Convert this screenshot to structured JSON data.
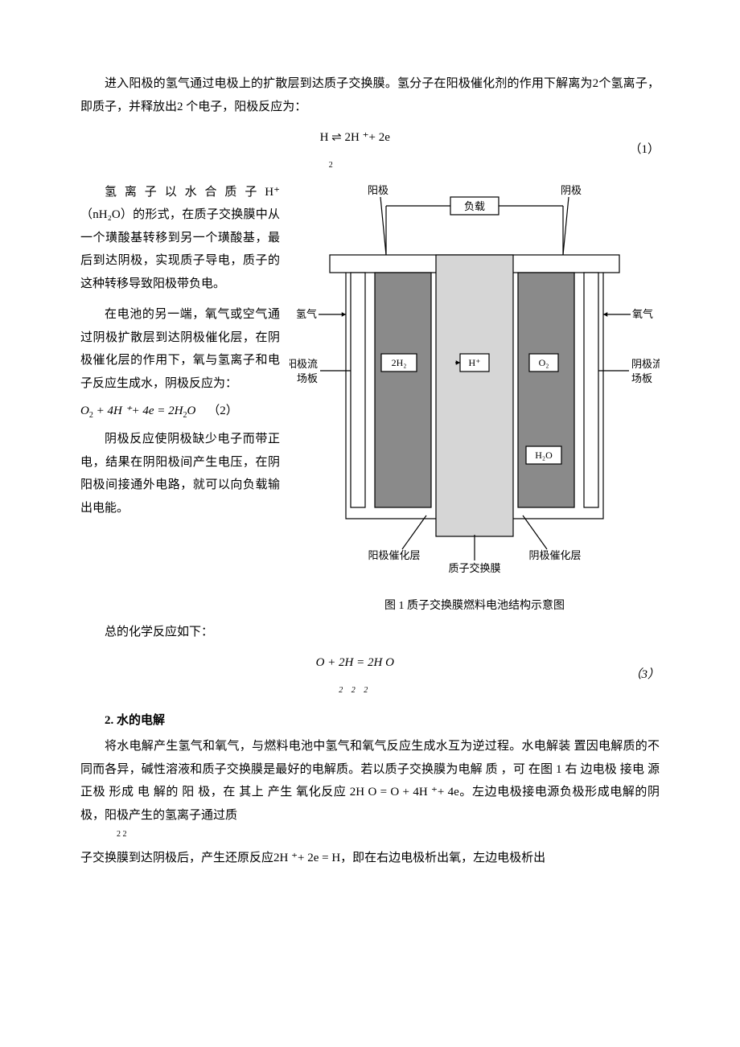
{
  "p1": "进入阳极的氢气通过电极上的扩散层到达质子交换膜。氢分子在阳极催化剂的作用下解离为2个氢离子，即质子，并释放出2 个电子，阳极反应为：",
  "eq1": {
    "body": "H ⇌ 2H ⁺+ 2e",
    "sub": "2",
    "num": "（1）"
  },
  "p2a": "氢 离 子 以 水 合 质 子  H⁺（nH₂O）的形式，在质子交换膜中从一个璜酸基转移到另一个璜酸基，最后到达阴极，实现质子导电，质子的这种转移导致阳极带负电。",
  "p2b": "在电池的另一端，氧气或空气通过阴极扩散层到达阴极催化层，在阴极催化层的作用下，氧与氢离子和电子反应生成水，阴极反应为：",
  "eq2": {
    "lhs": "O",
    "sub1": "2",
    "mid": " + 4H ⁺+ 4e = 2H",
    "sub2": "2",
    "rhs": "O",
    "num": "（2）"
  },
  "p2c": "阴极反应使阴极缺少电子而带正电，结果在阴阳极间产生电压，在阴阳极间接通外电路，就可以向负载输出电能。",
  "p3": "总的化学反应如下：",
  "eq3": {
    "body": "O +  2H  = 2H O",
    "sub": "2 2  2",
    "num": "（3）"
  },
  "heading2": "2. 水的电解",
  "p4": "将水电解产生氢气和氧气，与燃料电池中氢气和氧气反应生成水互为逆过程。水电解装 置因电解质的不同而各异，碱性溶液和质子交换膜是最好的电解质。若以质子交换膜为电解 质 ，可 在图 1 右  边电极 接电 源正极 形成 电 解的 阳 极，在 其上 产生 氧化反应 2H O =  O  + 4H ⁺+ 4e。左边电极接电源负极形成电解的阴极，阳极产生的氢离子通过质",
  "p4sub": "2    2",
  "p5": "子交换膜到达阴极后，产生还原反应2H ⁺+ 2e = H，即在右边电极析出氧，左边电极析出",
  "figure": {
    "caption": "图 1 质子交换膜燃料电池结构示意图",
    "labels": {
      "anode": "阳极",
      "load": "负载",
      "cathode": "阴极",
      "h2": "氢气",
      "o2": "氧气",
      "anodePlate": "阳极流场板",
      "cathodePlate": "阴极流场板",
      "innerH2": "2H₂",
      "innerHplus": "H⁺",
      "innerO2": "O₂",
      "innerH2O": "H₂O",
      "anodeCat": "阳极催化层",
      "membrane": "质子交换膜",
      "cathodeCat": "阴极催化层"
    },
    "colors": {
      "outline": "#000000",
      "gray": "#8a8a8a",
      "lightGray": "#e8e8e8",
      "membrane": "#d6d6d6",
      "bg": "#ffffff"
    }
  }
}
